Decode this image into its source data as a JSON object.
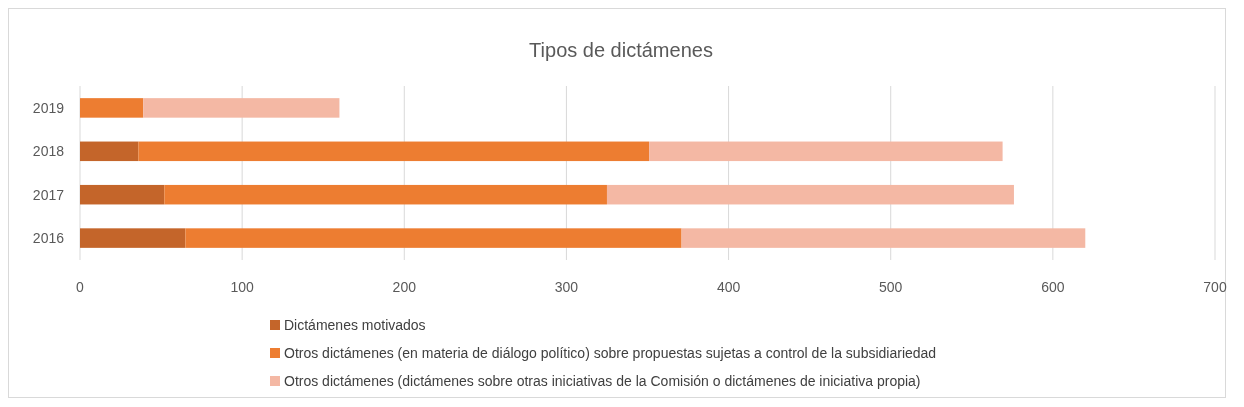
{
  "chart_data": {
    "type": "bar",
    "orientation": "horizontal",
    "stacked": true,
    "title": "Tipos de dictámenes",
    "categories": [
      "2019",
      "2018",
      "2017",
      "2016"
    ],
    "series": [
      {
        "name": "Dictámenes motivados",
        "color": "#c4652a",
        "values": [
          null,
          36,
          52,
          65
        ]
      },
      {
        "name": "Otros dictámenes (en materia de diálogo político) sobre propuestas sujetas a control de la subsidiariedad",
        "color": "#ed7d31",
        "values": [
          39,
          315,
          273,
          306
        ]
      },
      {
        "name": "Otros dictámenes (dictámenes sobre otras iniciativas de la Comisión o dictámenes de iniciativa propia)",
        "color": "#f4b8a4",
        "values": [
          121,
          218,
          251,
          249
        ]
      }
    ],
    "xlim": [
      0,
      700
    ],
    "xticks": [
      0,
      100,
      200,
      300,
      400,
      500,
      600,
      700
    ],
    "grid": "x",
    "legend": "bottom"
  }
}
